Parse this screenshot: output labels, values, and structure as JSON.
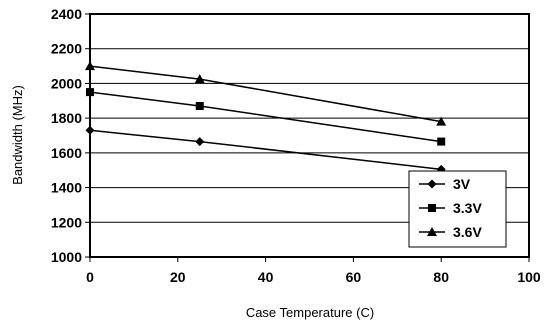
{
  "chart_data": {
    "type": "line",
    "title": "",
    "xlabel": "Case Temperature (C)",
    "ylabel": "Bandwidth (MHz)",
    "xlim": [
      0,
      100
    ],
    "ylim": [
      1000,
      2400
    ],
    "x_ticks": [
      0,
      20,
      40,
      60,
      80,
      100
    ],
    "y_ticks": [
      1000,
      1200,
      1400,
      1600,
      1800,
      2000,
      2200,
      2400
    ],
    "grid": "horizontal",
    "legend_position": "bottom-right",
    "series": [
      {
        "name": "3V",
        "marker": "diamond",
        "x": [
          0,
          25,
          80
        ],
        "values": [
          1730,
          1665,
          1505
        ]
      },
      {
        "name": "3.3V",
        "marker": "square",
        "x": [
          0,
          25,
          80
        ],
        "values": [
          1950,
          1870,
          1665
        ]
      },
      {
        "name": "3.6V",
        "marker": "triangle",
        "x": [
          0,
          25,
          80
        ],
        "values": [
          2100,
          2025,
          1780
        ]
      }
    ],
    "colors": {
      "line": "#000000",
      "grid": "#000000",
      "background": "#ffffff"
    }
  }
}
